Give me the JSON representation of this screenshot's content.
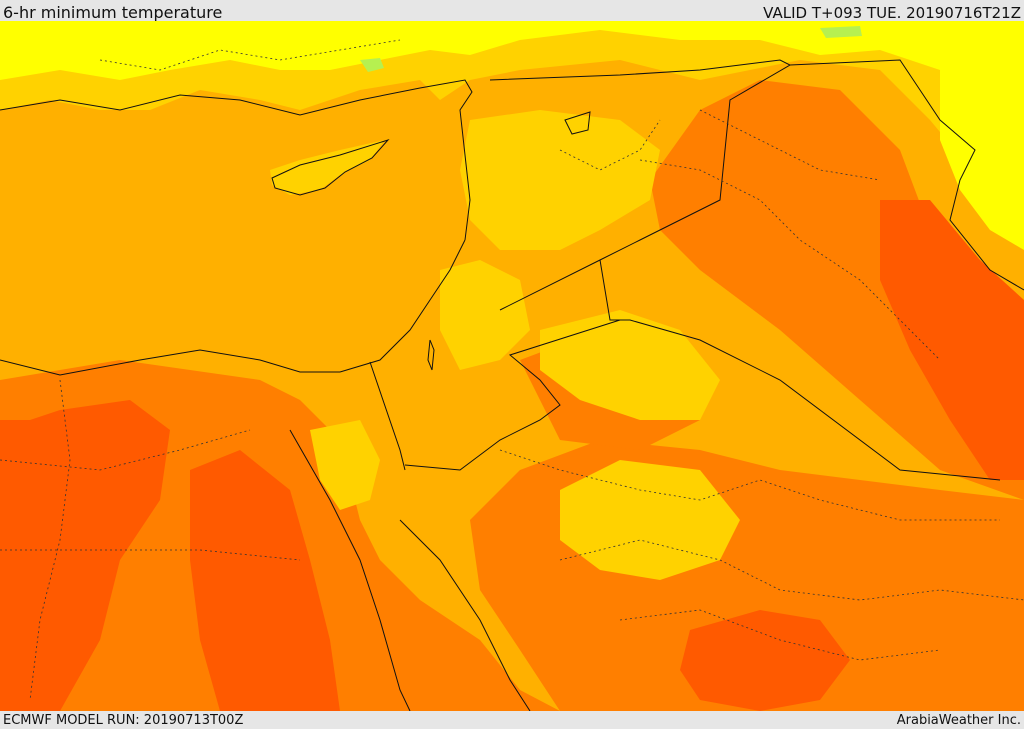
{
  "header": {
    "title": "6-hr minimum temperature",
    "valid": "VALID T+093 TUE. 20190716T21Z"
  },
  "footer": {
    "model_run": "ECMWF MODEL RUN: 20190713T00Z",
    "credit": "ArabiaWeather Inc."
  },
  "colors": {
    "sea_base": "#ffb000",
    "warmest": "#ff5a00",
    "hot": "#ff7f00",
    "warm": "#ffd200",
    "mild": "#ffff00",
    "cool": "#b6f050",
    "border": "#111111"
  }
}
